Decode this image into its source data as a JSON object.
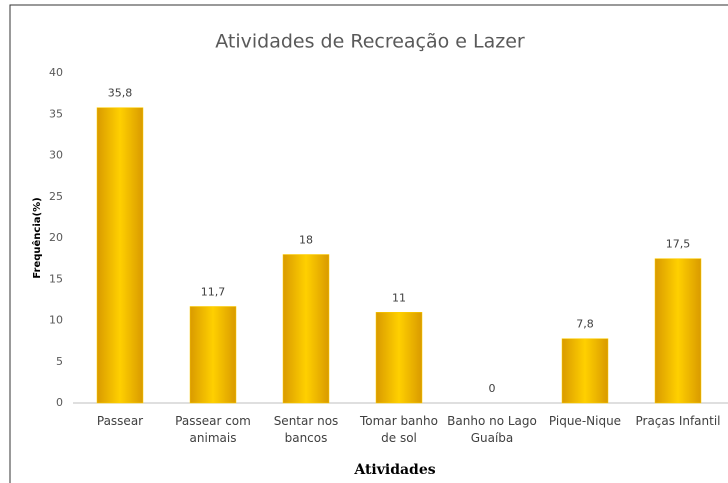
{
  "chart_data": {
    "type": "bar",
    "title": "Atividades de Recreação e Lazer",
    "x_label": "Atividades",
    "y_label": "Frequência(%)",
    "categories": [
      "Passear",
      "Passear com animais",
      "Sentar nos bancos",
      "Tomar banho de sol",
      "Banho no Lago Guaíba",
      "Pique-Nique",
      "Praças Infantil"
    ],
    "values": [
      35.8,
      11.7,
      18,
      11,
      0,
      7.8,
      17.5
    ],
    "value_labels": [
      "35,8",
      "11,7",
      "18",
      "11",
      "0",
      "7,8",
      "17,5"
    ],
    "color": "#ffd000",
    "ylim": [
      0,
      40
    ],
    "yticks": [
      0,
      5,
      10,
      15,
      20,
      25,
      30,
      35,
      40
    ],
    "grid": false
  }
}
